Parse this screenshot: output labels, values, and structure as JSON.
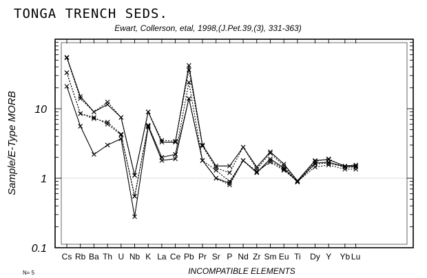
{
  "chart_data": {
    "type": "line",
    "title": "TONGA TRENCH SEDS.",
    "subtitle": "Ewart, Collerson, etal, 1998,(J.Pet.39,(3), 331-363)",
    "ylabel": "Sample/E-Type MORB",
    "xlabel": "INCOMPATIBLE ELEMENTS",
    "n_label": "N= 5",
    "y_scale": "log",
    "ylim": [
      0.1,
      100
    ],
    "y_ticks": [
      "0.1",
      "1",
      "10"
    ],
    "reference_line": 1,
    "grid": false,
    "categories": [
      "Cs",
      "Rb",
      "Ba",
      "Th",
      "U",
      "Nb",
      "K",
      "La",
      "Ce",
      "Pb",
      "Pr",
      "Sr",
      "P",
      "Nd",
      "Zr",
      "Sm",
      "Eu",
      "Ti",
      "Dy",
      "Y",
      "Yb",
      "Lu"
    ],
    "cat_index": [
      0,
      1,
      2,
      3,
      4,
      5,
      6,
      7,
      8,
      9,
      10,
      11,
      12,
      13,
      14,
      15,
      16,
      17,
      18.3,
      19.3,
      20.5,
      21.3
    ],
    "series": [
      {
        "values": [
          55,
          15,
          9.0,
          11.5,
          7.5,
          1.1,
          9.0,
          3.3,
          3.3,
          42,
          3.0,
          1.5,
          1.5,
          2.8,
          1.45,
          2.4,
          1.6,
          0.92,
          1.8,
          1.85,
          1.5,
          1.55
        ],
        "dashed": false
      },
      {
        "values": [
          54,
          14,
          9.0,
          12.5,
          7.5,
          1.1,
          9.0,
          3.5,
          3.4,
          36,
          2.9,
          1.4,
          1.2,
          2.8,
          1.35,
          2.3,
          1.5,
          0.9,
          1.75,
          1.9,
          1.45,
          1.45
        ],
        "dashed": true
      },
      {
        "values": [
          33,
          8.5,
          7.2,
          6.4,
          4.3,
          0.55,
          5.6,
          2.0,
          2.2,
          24,
          1.8,
          1.3,
          0.9,
          1.8,
          1.2,
          1.8,
          1.35,
          0.9,
          1.6,
          1.65,
          1.45,
          1.45
        ],
        "dashed": true
      },
      {
        "values": [
          33,
          8.5,
          7.5,
          6.0,
          4.2,
          0.55,
          5.8,
          2.0,
          2.2,
          14,
          1.8,
          1.0,
          0.8,
          1.8,
          1.25,
          1.7,
          1.3,
          0.9,
          1.45,
          1.55,
          1.35,
          1.35
        ],
        "dashed": true
      },
      {
        "values": [
          21,
          5.6,
          2.2,
          3.0,
          3.7,
          0.28,
          5.5,
          1.8,
          1.9,
          14,
          1.8,
          1.0,
          0.85,
          1.8,
          1.2,
          1.9,
          1.4,
          0.88,
          1.65,
          1.7,
          1.45,
          1.5
        ],
        "dashed": false
      }
    ]
  }
}
